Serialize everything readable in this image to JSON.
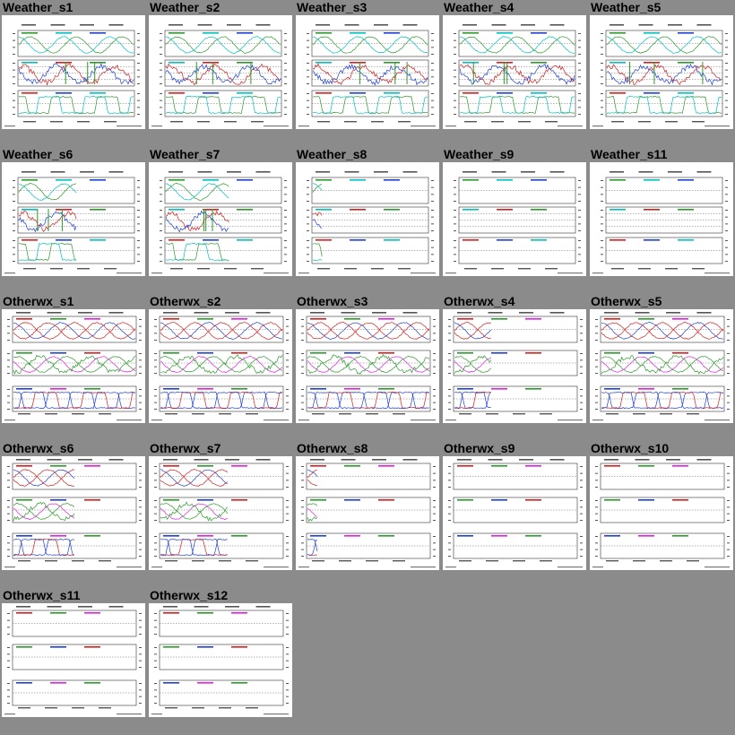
{
  "gallery": {
    "thumbnails": [
      {
        "title": "Weather_s1",
        "kind": "weather",
        "density": 1.0,
        "colors": [
          "#2b9a2b",
          "#00c0c0",
          "#d02020",
          "#1f3fd0"
        ]
      },
      {
        "title": "Weather_s2",
        "kind": "weather",
        "density": 1.0,
        "colors": [
          "#2b9a2b",
          "#00c0c0",
          "#d02020",
          "#1f3fd0"
        ]
      },
      {
        "title": "Weather_s3",
        "kind": "weather",
        "density": 1.0,
        "colors": [
          "#2b9a2b",
          "#00c0c0",
          "#d02020",
          "#1f3fd0"
        ]
      },
      {
        "title": "Weather_s4",
        "kind": "weather",
        "density": 1.0,
        "colors": [
          "#2b9a2b",
          "#00c0c0",
          "#d02020",
          "#1f3fd0"
        ]
      },
      {
        "title": "Weather_s5",
        "kind": "weather",
        "density": 1.0,
        "colors": [
          "#2b9a2b",
          "#00c0c0",
          "#d02020",
          "#1f3fd0"
        ]
      },
      {
        "title": "Weather_s6",
        "kind": "weather",
        "density": 0.5,
        "colors": [
          "#2b9a2b",
          "#00c0c0",
          "#d02020",
          "#1f3fd0"
        ]
      },
      {
        "title": "Weather_s7",
        "kind": "weather",
        "density": 0.55,
        "colors": [
          "#2b9a2b",
          "#00c0c0",
          "#d02020",
          "#1f3fd0"
        ]
      },
      {
        "title": "Weather_s8",
        "kind": "weather",
        "density": 0.08,
        "colors": [
          "#2b9a2b",
          "#00c0c0",
          "#d02020",
          "#1f3fd0"
        ]
      },
      {
        "title": "Weather_s9",
        "kind": "weather",
        "density": 0.0,
        "colors": [
          "#2b9a2b",
          "#00c0c0",
          "#d02020",
          "#1f3fd0"
        ]
      },
      {
        "title": "Weather_s11",
        "kind": "weather",
        "density": 0.0,
        "colors": [
          "#2b9a2b",
          "#00c0c0",
          "#d02020",
          "#1f3fd0"
        ]
      },
      {
        "title": "Otherwx_s1",
        "kind": "otherwx",
        "density": 1.0,
        "colors": [
          "#d02020",
          "#2b9a2b",
          "#1f3fd0",
          "#e020e0"
        ]
      },
      {
        "title": "Otherwx_s2",
        "kind": "otherwx",
        "density": 1.0,
        "colors": [
          "#d02020",
          "#2b9a2b",
          "#1f3fd0",
          "#e020e0"
        ]
      },
      {
        "title": "Otherwx_s3",
        "kind": "otherwx",
        "density": 1.0,
        "colors": [
          "#d02020",
          "#2b9a2b",
          "#1f3fd0",
          "#e020e0"
        ]
      },
      {
        "title": "Otherwx_s4",
        "kind": "otherwx",
        "density": 0.3,
        "colors": [
          "#d02020",
          "#2b9a2b",
          "#1f3fd0",
          "#e020e0"
        ]
      },
      {
        "title": "Otherwx_s5",
        "kind": "otherwx",
        "density": 1.0,
        "colors": [
          "#d02020",
          "#2b9a2b",
          "#1f3fd0",
          "#e020e0"
        ]
      },
      {
        "title": "Otherwx_s6",
        "kind": "otherwx",
        "density": 0.5,
        "colors": [
          "#d02020",
          "#2b9a2b",
          "#1f3fd0",
          "#e020e0"
        ]
      },
      {
        "title": "Otherwx_s7",
        "kind": "otherwx",
        "density": 0.55,
        "colors": [
          "#d02020",
          "#2b9a2b",
          "#1f3fd0",
          "#e020e0"
        ]
      },
      {
        "title": "Otherwx_s8",
        "kind": "otherwx",
        "density": 0.08,
        "colors": [
          "#d02020",
          "#2b9a2b",
          "#1f3fd0",
          "#e020e0"
        ]
      },
      {
        "title": "Otherwx_s9",
        "kind": "otherwx",
        "density": 0.0,
        "colors": [
          "#d02020",
          "#2b9a2b",
          "#1f3fd0",
          "#e020e0"
        ]
      },
      {
        "title": "Otherwx_s10",
        "kind": "otherwx",
        "density": 0.0,
        "colors": [
          "#d02020",
          "#2b9a2b",
          "#1f3fd0",
          "#e020e0"
        ]
      },
      {
        "title": "Otherwx_s11",
        "kind": "otherwx",
        "density": 0.0,
        "colors": [
          "#d02020",
          "#2b9a2b",
          "#1f3fd0",
          "#e020e0"
        ]
      },
      {
        "title": "Otherwx_s12",
        "kind": "otherwx",
        "density": 0.0,
        "colors": [
          "#d02020",
          "#2b9a2b",
          "#1f3fd0",
          "#e020e0"
        ]
      }
    ]
  },
  "theme": {
    "background": "#8b8b8b",
    "thumb_background": "#ffffff",
    "title_color": "#000000"
  }
}
